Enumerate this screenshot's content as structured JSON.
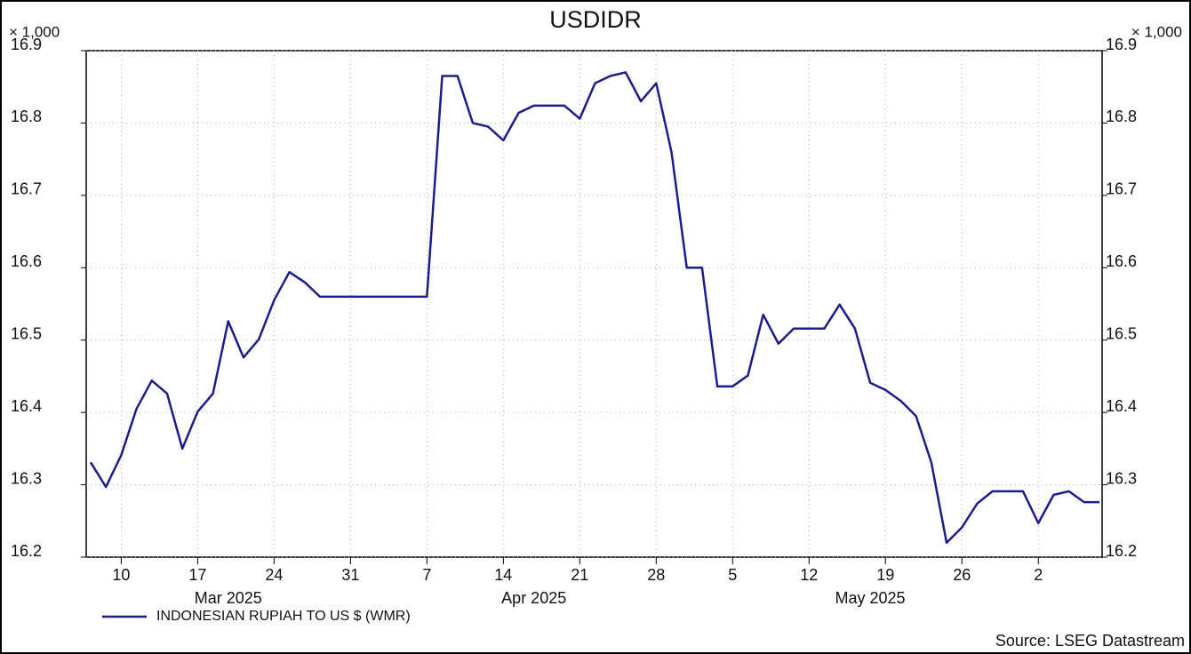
{
  "chart_data": {
    "type": "line",
    "title": "USDIDR",
    "y_unit_label": "× 1,000",
    "x": [
      "2025-03-06",
      "2025-03-07",
      "2025-03-10",
      "2025-03-11",
      "2025-03-12",
      "2025-03-13",
      "2025-03-14",
      "2025-03-17",
      "2025-03-18",
      "2025-03-19",
      "2025-03-20",
      "2025-03-21",
      "2025-03-24",
      "2025-03-25",
      "2025-03-26",
      "2025-03-27",
      "2025-03-28",
      "2025-03-31",
      "2025-04-01",
      "2025-04-02",
      "2025-04-03",
      "2025-04-04",
      "2025-04-07",
      "2025-04-08",
      "2025-04-09",
      "2025-04-10",
      "2025-04-11",
      "2025-04-14",
      "2025-04-15",
      "2025-04-16",
      "2025-04-17",
      "2025-04-18",
      "2025-04-21",
      "2025-04-22",
      "2025-04-23",
      "2025-04-24",
      "2025-04-25",
      "2025-04-28",
      "2025-04-29",
      "2025-04-30",
      "2025-05-01",
      "2025-05-02",
      "2025-05-05",
      "2025-05-06",
      "2025-05-07",
      "2025-05-08",
      "2025-05-09",
      "2025-05-12",
      "2025-05-13",
      "2025-05-14",
      "2025-05-15",
      "2025-05-16",
      "2025-05-19",
      "2025-05-20",
      "2025-05-21",
      "2025-05-22",
      "2025-05-23",
      "2025-05-26",
      "2025-05-27",
      "2025-05-28",
      "2025-05-29",
      "2025-05-30",
      "2025-06-02",
      "2025-06-03",
      "2025-06-04",
      "2025-06-05",
      "2025-06-06"
    ],
    "series": [
      {
        "name": "INDONESIAN RUPIAH TO US $ (WMR)",
        "color": "#1c1c8a",
        "values": [
          16.331,
          16.297,
          16.341,
          16.405,
          16.444,
          16.426,
          16.35,
          16.401,
          16.426,
          16.526,
          16.476,
          16.501,
          16.555,
          16.594,
          16.58,
          16.56,
          16.56,
          16.56,
          16.56,
          16.56,
          16.56,
          16.56,
          16.56,
          16.865,
          16.865,
          16.8,
          16.795,
          16.776,
          16.814,
          16.824,
          16.824,
          16.824,
          16.806,
          16.855,
          16.865,
          16.87,
          16.83,
          16.855,
          16.76,
          16.6,
          16.6,
          16.436,
          16.436,
          16.451,
          16.535,
          16.495,
          16.516,
          16.516,
          16.516,
          16.549,
          16.516,
          16.441,
          16.431,
          16.416,
          16.395,
          16.331,
          16.22,
          16.241,
          16.274,
          16.291,
          16.291,
          16.291,
          16.247,
          16.286,
          16.291,
          16.276,
          16.276
        ]
      }
    ],
    "xlim": [
      "2025-03-06",
      "2025-06-06"
    ],
    "xticks": [
      {
        "value": "2025-03-10",
        "label": "10"
      },
      {
        "value": "2025-03-17",
        "label": "17"
      },
      {
        "value": "2025-03-24",
        "label": "24"
      },
      {
        "value": "2025-03-31",
        "label": "31"
      },
      {
        "value": "2025-04-07",
        "label": "7"
      },
      {
        "value": "2025-04-14",
        "label": "14"
      },
      {
        "value": "2025-04-21",
        "label": "21"
      },
      {
        "value": "2025-04-28",
        "label": "28"
      },
      {
        "value": "2025-05-05",
        "label": "5"
      },
      {
        "value": "2025-05-12",
        "label": "12"
      },
      {
        "value": "2025-05-19",
        "label": "19"
      },
      {
        "value": "2025-05-26",
        "label": "26"
      },
      {
        "value": "2025-06-02",
        "label": "2"
      }
    ],
    "month_labels": [
      {
        "value": "2025-03-19",
        "label": "Mar 2025"
      },
      {
        "value": "2025-04-16",
        "label": "Apr 2025"
      },
      {
        "value": "2025-05-16",
        "label": "May 2025"
      }
    ],
    "ylim": [
      16.2,
      16.9
    ],
    "yticks": [
      16.2,
      16.3,
      16.4,
      16.5,
      16.6,
      16.7,
      16.8,
      16.9
    ],
    "grid": true,
    "source": "Source: LSEG Datastream"
  }
}
